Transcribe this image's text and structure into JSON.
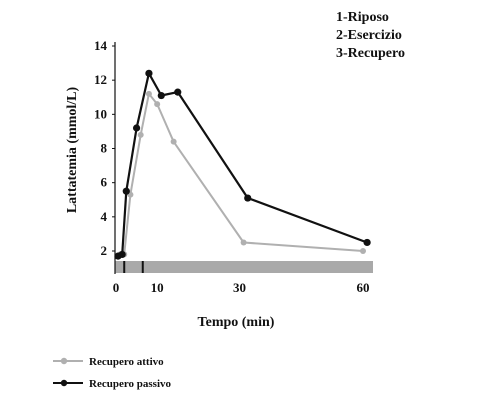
{
  "chart_data": {
    "type": "line",
    "xlabel": "Tempo (min)",
    "ylabel": "Lattatemia (mmol/L)",
    "x_ticks": [
      0,
      10,
      30,
      60
    ],
    "y_ticks": [
      2,
      4,
      6,
      8,
      10,
      12,
      14
    ],
    "xlim": [
      0,
      62
    ],
    "ylim": [
      1.5,
      14.3
    ],
    "phases": [
      "1-Riposo",
      "2-Esercizio",
      "3-Recupero"
    ],
    "phase_markers_x": [
      2,
      6.5
    ],
    "legend_position": "bottom-left",
    "grid": false,
    "series": [
      {
        "name": "Recupero attivo",
        "color": "#b0b0b0",
        "points": [
          [
            1,
            1.8
          ],
          [
            2,
            1.8
          ],
          [
            3.5,
            5.3
          ],
          [
            6,
            8.8
          ],
          [
            8,
            11.2
          ],
          [
            10,
            10.6
          ],
          [
            14,
            8.4
          ],
          [
            31,
            2.5
          ],
          [
            60,
            2.0
          ]
        ]
      },
      {
        "name": "Recupero passivo",
        "color": "#111111",
        "points": [
          [
            0.5,
            1.7
          ],
          [
            1.5,
            1.8
          ],
          [
            2.5,
            5.5
          ],
          [
            5,
            9.2
          ],
          [
            8,
            12.4
          ],
          [
            11,
            11.1
          ],
          [
            15,
            11.3
          ],
          [
            32,
            5.1
          ],
          [
            61,
            2.5
          ]
        ]
      }
    ]
  }
}
